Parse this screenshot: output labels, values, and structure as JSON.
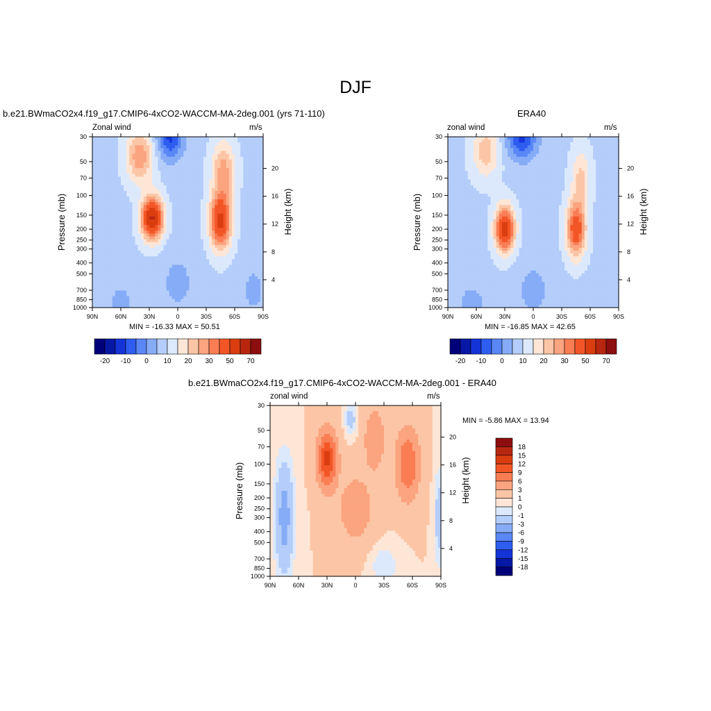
{
  "page": {
    "title": "DJF",
    "panels": [
      {
        "case_title": "b.e21.BWmaCO2x4.f19_g17.CMIP6-4xCO2-WACCM-MA-2deg.001 (yrs 71-110)",
        "left_label": "Zonal wind",
        "right_label": "m/s",
        "minmax": "MIN = -16.33  MAX =  50.51"
      },
      {
        "case_title": "ERA40",
        "left_label": "zonal wind",
        "right_label": "m/s",
        "minmax": "MIN = -16.85  MAX =  42.65"
      },
      {
        "case_title": "b.e21.BWmaCO2x4.f19_g17.CMIP6-4xCO2-WACCM-MA-2deg.001 - ERA40",
        "left_label": "zonal wind",
        "right_label": "m/s",
        "minmax": "MIN =  -5.86  MAX =  13.94"
      }
    ]
  },
  "chart_data": [
    {
      "type": "heatmap",
      "title": "b.e21.BWmaCO2x4.f19_g17.CMIP6-4xCO2-WACCM-MA-2deg.001 (yrs 71-110)",
      "variable": "Zonal wind",
      "units": "m/s",
      "xlabel": "",
      "ylabel": "Pressure (mb)",
      "y2label": "Height (km)",
      "xticks": [
        "90N",
        "60N",
        "30N",
        "0",
        "30S",
        "60S",
        "90S"
      ],
      "xlim": [
        90,
        -90
      ],
      "yticks": [
        "30",
        "50",
        "70",
        "100",
        "150",
        "200",
        "250",
        "300",
        "400",
        "500",
        "700",
        "850",
        "1000"
      ],
      "ylim": [
        1000,
        30
      ],
      "y_scale": "log",
      "y2ticks": [
        "4",
        "8",
        "12",
        "16",
        "20"
      ],
      "min": -16.33,
      "max": 50.51,
      "colorbar_labels": [
        "-20",
        "-10",
        "0",
        "10",
        "20",
        "30",
        "50",
        "70"
      ],
      "colorbar_colors": [
        "#00007a",
        "#0718a6",
        "#1434d8",
        "#2e5df0",
        "#5a87f5",
        "#86acf7",
        "#b4cdfa",
        "#dce9fd",
        "#fee6d6",
        "#fcc6a6",
        "#fba47f",
        "#fa7d54",
        "#f35626",
        "#da3e10",
        "#b82610",
        "#8c0e0e"
      ],
      "features": [
        {
          "name": "northern jet core",
          "lat": 27,
          "p": 160,
          "value": 50
        },
        {
          "name": "southern jet core",
          "lat": -45,
          "p": 170,
          "value": 40
        },
        {
          "name": "tropical easterlies",
          "lat": 10,
          "p": 30,
          "value": -16
        }
      ]
    },
    {
      "type": "heatmap",
      "title": "ERA40",
      "variable": "zonal wind",
      "units": "m/s",
      "xlabel": "",
      "ylabel": "Pressure (mb)",
      "y2label": "Height (km)",
      "xticks": [
        "90N",
        "60N",
        "30N",
        "0",
        "30S",
        "60S",
        "90S"
      ],
      "xlim": [
        90,
        -90
      ],
      "yticks": [
        "30",
        "50",
        "70",
        "100",
        "150",
        "200",
        "250",
        "300",
        "400",
        "500",
        "700",
        "850",
        "1000"
      ],
      "ylim": [
        1000,
        30
      ],
      "y_scale": "log",
      "y2ticks": [
        "4",
        "8",
        "12",
        "16",
        "20"
      ],
      "min": -16.85,
      "max": 42.65,
      "colorbar_labels": [
        "-20",
        "-10",
        "0",
        "10",
        "20",
        "30",
        "50",
        "70"
      ],
      "colorbar_colors": [
        "#00007a",
        "#0718a6",
        "#1434d8",
        "#2e5df0",
        "#5a87f5",
        "#86acf7",
        "#b4cdfa",
        "#dce9fd",
        "#fee6d6",
        "#fcc6a6",
        "#fba47f",
        "#fa7d54",
        "#f35626",
        "#da3e10",
        "#b82610",
        "#8c0e0e"
      ],
      "features": [
        {
          "name": "northern jet core",
          "lat": 30,
          "p": 200,
          "value": 42
        },
        {
          "name": "southern jet core",
          "lat": -45,
          "p": 200,
          "value": 35
        },
        {
          "name": "tropical easterlies",
          "lat": 15,
          "p": 30,
          "value": -16
        }
      ]
    },
    {
      "type": "heatmap",
      "title": "b.e21.BWmaCO2x4.f19_g17.CMIP6-4xCO2-WACCM-MA-2deg.001 - ERA40",
      "variable": "zonal wind",
      "units": "m/s",
      "xlabel": "",
      "ylabel": "Pressure (mb)",
      "y2label": "Height (km)",
      "xticks": [
        "90N",
        "60N",
        "30N",
        "0",
        "30S",
        "60S",
        "90S"
      ],
      "xlim": [
        90,
        -90
      ],
      "yticks": [
        "30",
        "50",
        "70",
        "100",
        "150",
        "200",
        "250",
        "300",
        "400",
        "500",
        "700",
        "850",
        "1000"
      ],
      "ylim": [
        1000,
        30
      ],
      "y_scale": "log",
      "y2ticks": [
        "4",
        "8",
        "12",
        "16",
        "20"
      ],
      "min": -5.86,
      "max": 13.94,
      "colorbar_labels": [
        "18",
        "15",
        "12",
        "9",
        "6",
        "3",
        "1",
        "0",
        "-1",
        "-3",
        "-6",
        "-9",
        "-12",
        "-15",
        "-18"
      ],
      "colorbar_colors": [
        "#8c0e0e",
        "#b82610",
        "#da3e10",
        "#f35626",
        "#fa7d54",
        "#fba47f",
        "#fcc6a6",
        "#fee6d6",
        "#dce9fd",
        "#b4cdfa",
        "#86acf7",
        "#5a87f5",
        "#2e5df0",
        "#1434d8",
        "#0718a6",
        "#00007a"
      ],
      "features": [
        {
          "name": "northern positive difference",
          "lat": 30,
          "p": 90,
          "value": 13
        },
        {
          "name": "southern positive difference",
          "lat": -55,
          "p": 100,
          "value": 8
        },
        {
          "name": "high-latitude negative difference",
          "lat": 75,
          "p": 300,
          "value": -4
        }
      ]
    }
  ]
}
